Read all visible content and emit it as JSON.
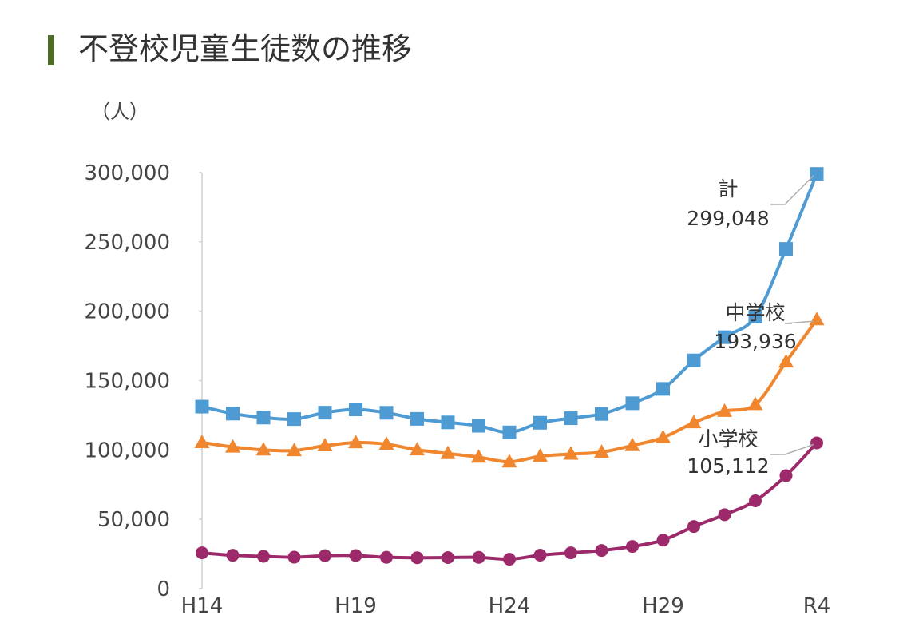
{
  "page": {
    "title": "不登校児童生徒数の推移"
  },
  "chart_data": {
    "type": "line",
    "title": "不登校児童生徒数の推移",
    "ylabel": "（人）",
    "xlabel": "",
    "ylim": [
      0,
      300000
    ],
    "yticks": [
      0,
      50000,
      100000,
      150000,
      200000,
      250000,
      300000
    ],
    "ytick_labels": [
      "0",
      "50,000",
      "100,000",
      "150,000",
      "200,000",
      "250,000",
      "300,000"
    ],
    "x": [
      "H14",
      "H15",
      "H16",
      "H17",
      "H18",
      "H19",
      "H20",
      "H21",
      "H22",
      "H23",
      "H24",
      "H25",
      "H26",
      "H27",
      "H28",
      "H29",
      "H30",
      "R1",
      "R2",
      "R3",
      "R4"
    ],
    "xtick_labels": [
      "H14",
      "H19",
      "H24",
      "H29",
      "R4"
    ],
    "grid": false,
    "legend": "none",
    "series": [
      {
        "name": "計",
        "color": "#4e9bd4",
        "marker": "square",
        "values": [
          131252,
          126226,
          123358,
          122287,
          126894,
          129255,
          126805,
          122432,
          119891,
          117458,
          112689,
          119617,
          122897,
          125991,
          133683,
          144031,
          164528,
          181272,
          196127,
          244940,
          299048
        ]
      },
      {
        "name": "中学校",
        "color": "#f0862e",
        "marker": "triangle",
        "values": [
          105383,
          102149,
          100040,
          99578,
          103069,
          105328,
          104153,
          100105,
          97428,
          94836,
          91446,
          95442,
          97033,
          98408,
          103235,
          108999,
          119687,
          127922,
          132777,
          163442,
          193936
        ]
      },
      {
        "name": "小学校",
        "color": "#9c2a6a",
        "marker": "circle",
        "values": [
          25869,
          24077,
          23318,
          22709,
          23825,
          23927,
          22652,
          22327,
          22463,
          22622,
          21243,
          24175,
          25864,
          27583,
          30448,
          35032,
          44841,
          53350,
          63350,
          81498,
          105112
        ]
      }
    ],
    "annotations": [
      {
        "series": "計",
        "label": "計",
        "value": "299,048"
      },
      {
        "series": "中学校",
        "label": "中学校",
        "value": "193,936"
      },
      {
        "series": "小学校",
        "label": "小学校",
        "value": "105,112"
      }
    ]
  }
}
